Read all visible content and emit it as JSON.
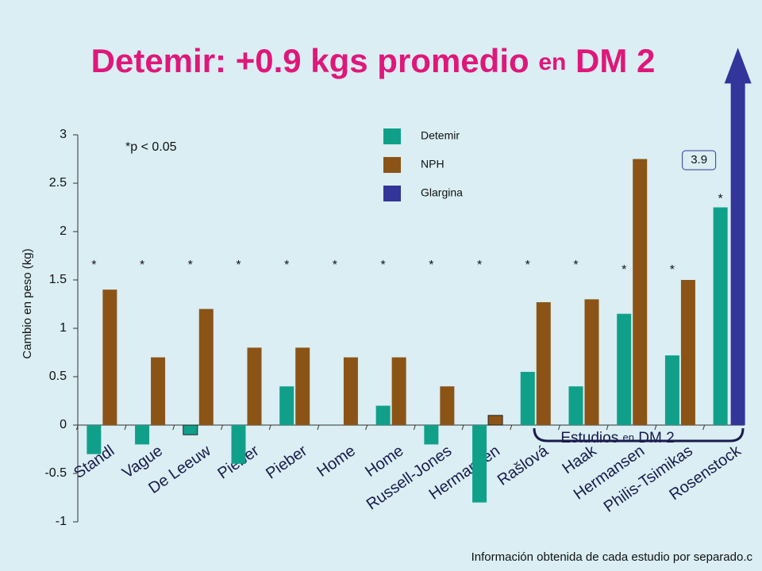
{
  "chart_data": {
    "type": "bar",
    "title_parts": [
      "Detemir: +0.9 kgs promedio ",
      "en",
      " DM 2"
    ],
    "y_label": "Cambio en peso (kg)",
    "note": "*p < 0.05",
    "group_label_parts": [
      "Estudios ",
      "en",
      " DM 2"
    ],
    "footer": "Información obtenida de cada estudio por separado.c",
    "categories": [
      "Standl",
      "Vague",
      "De Leeuw",
      "Pieber",
      "Pieber",
      "Home",
      "Home",
      "Russell-Jones",
      "Hermansen",
      "Rašlová",
      "Haak",
      "Hermansen",
      "Philis-Tsimikas",
      "Rosenstock"
    ],
    "significance": [
      "*",
      "*",
      "*",
      "*",
      "*",
      "*",
      "*",
      "*",
      "*",
      "*",
      "*",
      "*",
      "*",
      "*"
    ],
    "series": [
      {
        "name": "Detemir",
        "color": "#10a08a",
        "values": [
          -0.3,
          -0.2,
          -0.1,
          -0.4,
          0.4,
          null,
          0.2,
          -0.2,
          -0.8,
          0.55,
          0.4,
          1.15,
          0.72,
          2.25
        ]
      },
      {
        "name": "NPH",
        "color": "#8b5416",
        "values": [
          1.4,
          0.7,
          1.2,
          0.8,
          0.8,
          0.7,
          0.7,
          0.4,
          0.1,
          1.27,
          1.3,
          2.75,
          1.5,
          null
        ]
      },
      {
        "name": "Glargina",
        "color": "#33359a",
        "values": [
          null,
          null,
          null,
          null,
          null,
          null,
          null,
          null,
          null,
          null,
          null,
          null,
          null,
          3.9
        ],
        "value_labels": [
          null,
          null,
          null,
          null,
          null,
          null,
          null,
          null,
          null,
          null,
          null,
          null,
          null,
          "3.9"
        ]
      }
    ],
    "ylim": [
      -1,
      3
    ],
    "yticks": [
      -1,
      -0.5,
      0,
      0.5,
      1,
      1.5,
      2,
      2.5,
      3
    ]
  }
}
